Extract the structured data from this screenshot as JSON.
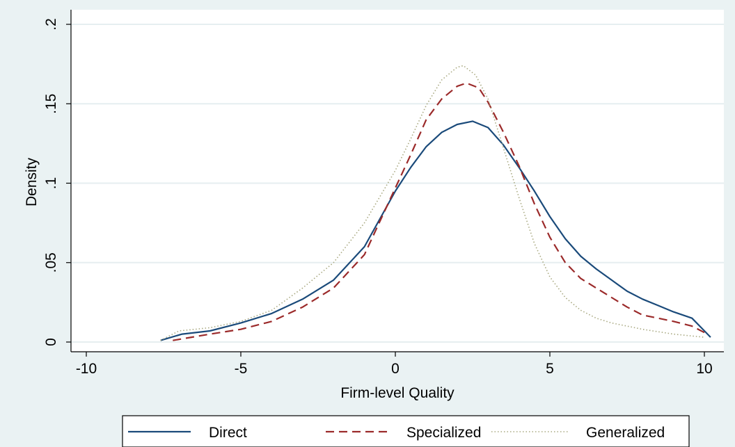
{
  "chart_data": {
    "type": "line",
    "title": "",
    "xlabel": "Firm-level Quality",
    "ylabel": "Density",
    "xlim": [
      -10,
      10
    ],
    "ylim": [
      0,
      0.2
    ],
    "x_ticks": [
      -10,
      -5,
      0,
      5,
      10
    ],
    "x_tick_labels": [
      "-10",
      "-5",
      "0",
      "5",
      "10"
    ],
    "y_ticks": [
      0,
      0.05,
      0.1,
      0.15,
      0.2
    ],
    "y_tick_labels": [
      "0",
      ".05",
      ".1",
      ".15",
      ".2"
    ],
    "grid": true,
    "legend_position": "bottom",
    "series": [
      {
        "name": "Direct",
        "color": "#1a4a7a",
        "style": "solid",
        "points": [
          [
            -7.6,
            0.001
          ],
          [
            -6.9,
            0.005
          ],
          [
            -6,
            0.007
          ],
          [
            -5,
            0.012
          ],
          [
            -4,
            0.018
          ],
          [
            -3,
            0.027
          ],
          [
            -2,
            0.039
          ],
          [
            -1,
            0.06
          ],
          [
            0,
            0.095
          ],
          [
            0.5,
            0.11
          ],
          [
            1,
            0.123
          ],
          [
            1.5,
            0.132
          ],
          [
            2,
            0.137
          ],
          [
            2.5,
            0.139
          ],
          [
            3,
            0.135
          ],
          [
            3.5,
            0.124
          ],
          [
            4,
            0.11
          ],
          [
            4.5,
            0.095
          ],
          [
            5,
            0.079
          ],
          [
            5.5,
            0.065
          ],
          [
            6,
            0.054
          ],
          [
            6.5,
            0.046
          ],
          [
            7,
            0.039
          ],
          [
            7.5,
            0.032
          ],
          [
            8,
            0.027
          ],
          [
            8.5,
            0.023
          ],
          [
            9,
            0.019
          ],
          [
            9.6,
            0.015
          ],
          [
            10.2,
            0.003
          ]
        ]
      },
      {
        "name": "Specialized",
        "color": "#9b2a2a",
        "style": "dashed",
        "points": [
          [
            -7.2,
            0.001
          ],
          [
            -6,
            0.005
          ],
          [
            -5,
            0.008
          ],
          [
            -4,
            0.013
          ],
          [
            -3,
            0.022
          ],
          [
            -2,
            0.034
          ],
          [
            -1,
            0.055
          ],
          [
            0,
            0.097
          ],
          [
            0.5,
            0.118
          ],
          [
            1,
            0.14
          ],
          [
            1.5,
            0.153
          ],
          [
            2,
            0.161
          ],
          [
            2.3,
            0.163
          ],
          [
            2.7,
            0.16
          ],
          [
            3,
            0.151
          ],
          [
            3.5,
            0.132
          ],
          [
            4,
            0.111
          ],
          [
            4.5,
            0.087
          ],
          [
            5,
            0.066
          ],
          [
            5.5,
            0.05
          ],
          [
            6,
            0.04
          ],
          [
            6.5,
            0.034
          ],
          [
            7,
            0.028
          ],
          [
            7.5,
            0.022
          ],
          [
            8,
            0.017
          ],
          [
            8.5,
            0.015
          ],
          [
            9,
            0.013
          ],
          [
            9.6,
            0.01
          ],
          [
            10,
            0.006
          ]
        ]
      },
      {
        "name": "Generalized",
        "color": "#a8a880",
        "style": "dotted",
        "points": [
          [
            -7.6,
            0.001
          ],
          [
            -7,
            0.007
          ],
          [
            -6,
            0.009
          ],
          [
            -5,
            0.013
          ],
          [
            -4,
            0.02
          ],
          [
            -3,
            0.034
          ],
          [
            -2,
            0.05
          ],
          [
            -1,
            0.075
          ],
          [
            0,
            0.108
          ],
          [
            0.5,
            0.128
          ],
          [
            1,
            0.149
          ],
          [
            1.5,
            0.165
          ],
          [
            2,
            0.173
          ],
          [
            2.2,
            0.174
          ],
          [
            2.6,
            0.168
          ],
          [
            3,
            0.153
          ],
          [
            3.5,
            0.122
          ],
          [
            4,
            0.091
          ],
          [
            4.5,
            0.062
          ],
          [
            5,
            0.041
          ],
          [
            5.5,
            0.028
          ],
          [
            6,
            0.02
          ],
          [
            6.5,
            0.015
          ],
          [
            7,
            0.012
          ],
          [
            7.5,
            0.01
          ],
          [
            8,
            0.008
          ],
          [
            9,
            0.005
          ],
          [
            10,
            0.003
          ]
        ]
      }
    ]
  }
}
